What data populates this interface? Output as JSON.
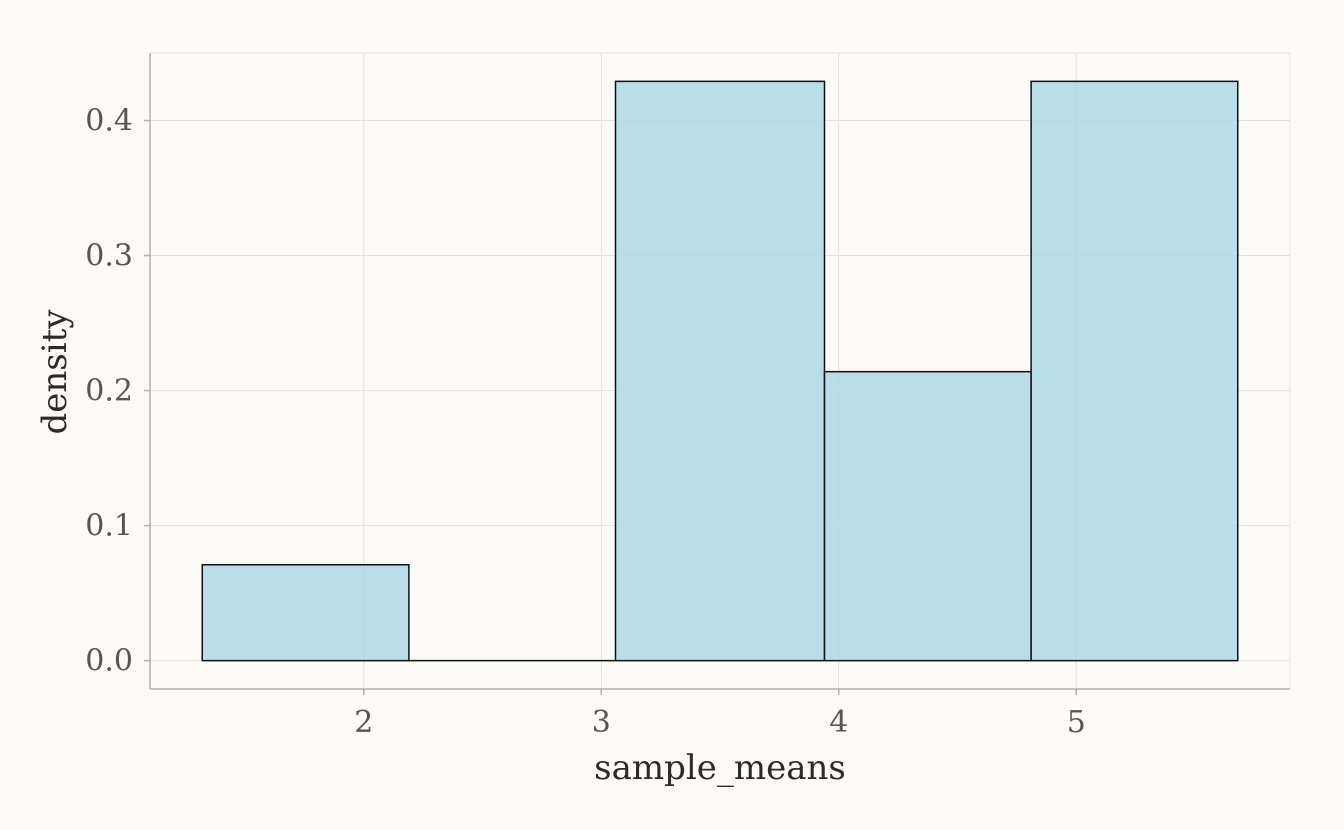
{
  "chart_data": {
    "type": "bar",
    "title": "",
    "xlabel": "sample_means",
    "ylabel": "density",
    "xlim": [
      1.1,
      5.9
    ],
    "ylim": [
      -0.021,
      0.45
    ],
    "x_ticks": [
      2,
      3,
      4,
      5
    ],
    "y_ticks": [
      0.0,
      0.1,
      0.2,
      0.3,
      0.4
    ],
    "x_tick_labels": [
      "2",
      "3",
      "4",
      "5"
    ],
    "y_tick_labels": [
      "0.0",
      "0.1",
      "0.2",
      "0.3",
      "0.4"
    ],
    "grid": true,
    "bins": [
      {
        "x0": 1.32,
        "x1": 2.19,
        "value": 0.071
      },
      {
        "x0": 2.19,
        "x1": 3.06,
        "value": 0.0
      },
      {
        "x0": 3.06,
        "x1": 3.94,
        "value": 0.429
      },
      {
        "x0": 3.94,
        "x1": 4.81,
        "value": 0.214
      },
      {
        "x0": 4.81,
        "x1": 5.68,
        "value": 0.429
      }
    ],
    "colors": {
      "bar_fill": "#add8e6",
      "bar_stroke": "#111111",
      "background": "#fcfbf8",
      "grid": "#e2e0dc",
      "axis": "#b3b0ab"
    }
  }
}
